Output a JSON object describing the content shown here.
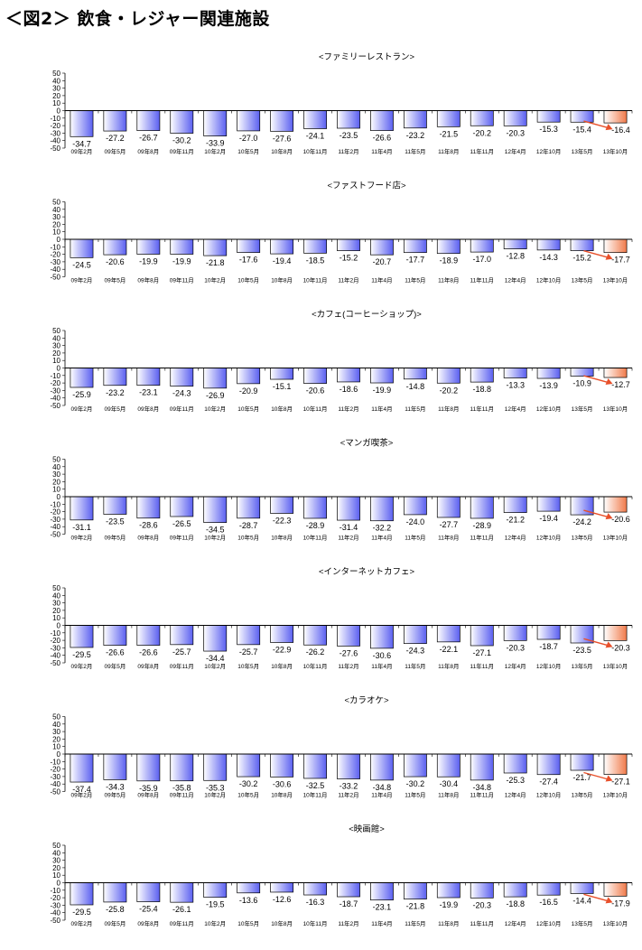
{
  "page_title": "＜図2＞ 飲食・レジャー関連施設",
  "colors": {
    "bar_gradient_start": "#ffffff",
    "bar_gradient_end": "#5a5ff0",
    "highlight_gradient_start": "#ffffff",
    "highlight_gradient_end": "#f07a4a",
    "arrow": "#e8502a",
    "axis": "#000000",
    "grid": "#d9d9d9"
  },
  "chart_data": [
    {
      "type": "bar",
      "title": "<ファミリーレストラン>",
      "categories": [
        "09年2月",
        "09年5月",
        "09年8月",
        "09年11月",
        "10年2月",
        "10年5月",
        "10年8月",
        "10年11月",
        "11年2月",
        "11年4月",
        "11年5月",
        "11年8月",
        "11年11月",
        "12年4月",
        "12年10月",
        "13年5月",
        "13年10月"
      ],
      "values": [
        -34.7,
        -27.2,
        -26.7,
        -30.2,
        -33.9,
        -27.0,
        -27.6,
        -24.1,
        -23.5,
        -26.6,
        -23.2,
        -21.5,
        -20.2,
        -20.3,
        -15.3,
        -15.4,
        -16.4
      ],
      "value_labels": [
        "-34.7",
        "-27.2",
        "-26.7",
        "-30.2",
        "-33.9",
        "-27.0",
        "-27.6",
        "-24.1",
        "-23.5",
        "-26.6",
        "-23.2",
        "-21.5",
        "-20.2",
        "-20.3",
        "-15.3",
        "-15.4",
        "-16.4"
      ],
      "yticks": [
        "50",
        "40",
        "30",
        "20",
        "10",
        "0",
        "-10",
        "-20",
        "-30",
        "-40",
        "-50"
      ],
      "ylim": [
        -50,
        50
      ],
      "highlight_index": 16
    },
    {
      "type": "bar",
      "title": "<ファストフード店>",
      "categories": [
        "09年2月",
        "09年5月",
        "09年8月",
        "09年11月",
        "10年2月",
        "10年5月",
        "10年8月",
        "10年11月",
        "11年2月",
        "11年4月",
        "11年5月",
        "11年8月",
        "11年11月",
        "12年4月",
        "12年10月",
        "13年5月",
        "13年10月"
      ],
      "values": [
        -24.5,
        -20.6,
        -19.9,
        -19.9,
        -21.8,
        -17.6,
        -19.4,
        -18.5,
        -15.2,
        -20.7,
        -17.7,
        -18.9,
        -17.0,
        -12.8,
        -14.3,
        -15.2,
        -17.7
      ],
      "value_labels": [
        "-24.5",
        "-20.6",
        "-19.9",
        "-19.9",
        "-21.8",
        "-17.6",
        "-19.4",
        "-18.5",
        "-15.2",
        "-20.7",
        "-17.7",
        "-18.9",
        "-17.0",
        "-12.8",
        "-14.3",
        "-15.2",
        "-17.7"
      ],
      "yticks": [
        "50",
        "40",
        "30",
        "20",
        "10",
        "0",
        "-10",
        "-20",
        "-30",
        "-40",
        "-50"
      ],
      "ylim": [
        -50,
        50
      ],
      "highlight_index": 16
    },
    {
      "type": "bar",
      "title": "<カフェ(コーヒーショップ)>",
      "categories": [
        "09年2月",
        "09年5月",
        "09年8月",
        "09年11月",
        "10年2月",
        "10年5月",
        "10年8月",
        "10年11月",
        "11年2月",
        "11年4月",
        "11年5月",
        "11年8月",
        "11年11月",
        "12年4月",
        "12年10月",
        "13年5月",
        "13年10月"
      ],
      "values": [
        -25.9,
        -23.2,
        -23.1,
        -24.3,
        -26.9,
        -20.9,
        -15.1,
        -20.6,
        -18.6,
        -19.9,
        -14.8,
        -20.2,
        -18.8,
        -13.3,
        -13.9,
        -10.9,
        -12.7
      ],
      "value_labels": [
        "-25.9",
        "-23.2",
        "-23.1",
        "-24.3",
        "-26.9",
        "-20.9",
        "-15.1",
        "-20.6",
        "-18.6",
        "-19.9",
        "-14.8",
        "-20.2",
        "-18.8",
        "-13.3",
        "-13.9",
        "-10.9",
        "-12.7"
      ],
      "yticks": [
        "50",
        "40",
        "30",
        "20",
        "10",
        "0",
        "-10",
        "-20",
        "-30",
        "-40",
        "-50"
      ],
      "ylim": [
        -50,
        50
      ],
      "highlight_index": 16
    },
    {
      "type": "bar",
      "title": "<マンガ喫茶>",
      "categories": [
        "09年2月",
        "09年5月",
        "09年8月",
        "09年11月",
        "10年2月",
        "10年5月",
        "10年8月",
        "10年11月",
        "11年2月",
        "11年4月",
        "11年5月",
        "11年8月",
        "11年11月",
        "12年4月",
        "12年10月",
        "13年5月",
        "13年10月"
      ],
      "values": [
        -31.1,
        -23.5,
        -28.6,
        -26.5,
        -34.5,
        -28.7,
        -22.3,
        -28.9,
        -31.4,
        -32.2,
        -24.0,
        -27.7,
        -28.9,
        -21.2,
        -19.4,
        -24.2,
        -20.6
      ],
      "value_labels": [
        "-31.1",
        "-23.5",
        "-28.6",
        "-26.5",
        "-34.5",
        "-28.7",
        "-22.3",
        "-28.9",
        "-31.4",
        "-32.2",
        "-24.0",
        "-27.7",
        "-28.9",
        "-21.2",
        "-19.4",
        "-24.2",
        "-20.6"
      ],
      "yticks": [
        "50",
        "40",
        "30",
        "20",
        "10",
        "0",
        "-10",
        "-20",
        "-30",
        "-40",
        "-50"
      ],
      "ylim": [
        -50,
        50
      ],
      "highlight_index": 16
    },
    {
      "type": "bar",
      "title": "<インターネットカフェ>",
      "categories": [
        "09年2月",
        "09年5月",
        "09年8月",
        "09年11月",
        "10年2月",
        "10年5月",
        "10年8月",
        "10年11月",
        "11年2月",
        "11年4月",
        "11年5月",
        "11年8月",
        "11年11月",
        "12年4月",
        "12年10月",
        "13年5月",
        "13年10月"
      ],
      "values": [
        -29.5,
        -26.6,
        -26.6,
        -25.7,
        -34.4,
        -25.7,
        -22.9,
        -26.2,
        -27.6,
        -30.6,
        -24.3,
        -22.1,
        -27.1,
        -20.3,
        -18.7,
        -23.5,
        -20.3
      ],
      "value_labels": [
        "-29.5",
        "-26.6",
        "-26.6",
        "-25.7",
        "-34.4",
        "-25.7",
        "-22.9",
        "-26.2",
        "-27.6",
        "-30.6",
        "-24.3",
        "-22.1",
        "-27.1",
        "-20.3",
        "-18.7",
        "-23.5",
        "-20.3"
      ],
      "yticks": [
        "50",
        "40",
        "30",
        "20",
        "10",
        "0",
        "-10",
        "-20",
        "-30",
        "-40",
        "-50"
      ],
      "ylim": [
        -50,
        50
      ],
      "highlight_index": 16
    },
    {
      "type": "bar",
      "title": "<カラオケ>",
      "categories": [
        "09年2月",
        "09年5月",
        "09年8月",
        "09年11月",
        "10年2月",
        "10年5月",
        "10年8月",
        "10年11月",
        "11年2月",
        "11年4月",
        "11年5月",
        "11年8月",
        "11年11月",
        "12年4月",
        "12年10月",
        "13年5月",
        "13年10月"
      ],
      "values": [
        -37.4,
        -34.3,
        -35.9,
        -35.8,
        -35.3,
        -30.2,
        -30.6,
        -32.5,
        -33.2,
        -34.8,
        -30.2,
        -30.4,
        -34.8,
        -25.3,
        -27.4,
        -21.7,
        -27.1
      ],
      "value_labels": [
        "-37.4",
        "-34.3",
        "-35.9",
        "-35.8",
        "-35.3",
        "-30.2",
        "-30.6",
        "-32.5",
        "-33.2",
        "-34.8",
        "-30.2",
        "-30.4",
        "-34.8",
        "-25.3",
        "-27.4",
        "-21.7",
        "-27.1"
      ],
      "yticks": [
        "50",
        "40",
        "30",
        "20",
        "10",
        "0",
        "-10",
        "-20",
        "-30",
        "-40",
        "-50"
      ],
      "ylim": [
        -50,
        50
      ],
      "highlight_index": 16
    },
    {
      "type": "bar",
      "title": "<映画館>",
      "categories": [
        "09年2月",
        "09年5月",
        "09年8月",
        "09年11月",
        "10年2月",
        "10年5月",
        "10年8月",
        "10年11月",
        "11年2月",
        "11年4月",
        "11年5月",
        "11年8月",
        "11年11月",
        "12年4月",
        "12年10月",
        "13年5月",
        "13年10月"
      ],
      "values": [
        -29.5,
        -25.8,
        -25.4,
        -26.1,
        -19.5,
        -13.6,
        -12.6,
        -16.3,
        -18.7,
        -23.1,
        -21.8,
        -19.9,
        -20.3,
        -18.8,
        -16.5,
        -14.4,
        -17.9
      ],
      "value_labels": [
        "-29.5",
        "-25.8",
        "-25.4",
        "-26.1",
        "-19.5",
        "-13.6",
        "-12.6",
        "-16.3",
        "-18.7",
        "-23.1",
        "-21.8",
        "-19.9",
        "-20.3",
        "-18.8",
        "-16.5",
        "-14.4",
        "-17.9"
      ],
      "yticks": [
        "50",
        "40",
        "30",
        "20",
        "10",
        "0",
        "-10",
        "-20",
        "-30",
        "-40",
        "-50"
      ],
      "ylim": [
        -50,
        50
      ],
      "highlight_index": 16
    }
  ]
}
